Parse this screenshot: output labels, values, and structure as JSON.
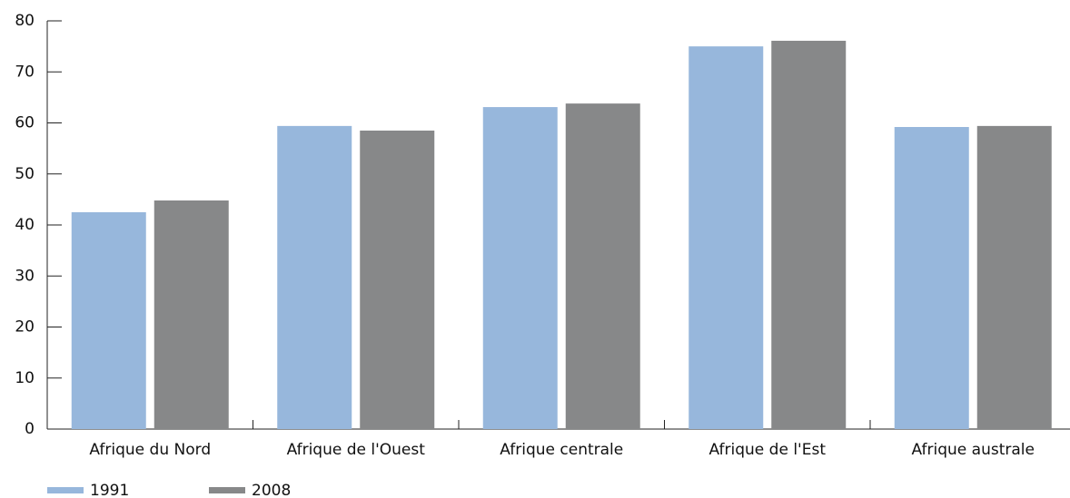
{
  "chart_data": {
    "type": "bar",
    "categories": [
      "Afrique du Nord",
      "Afrique de l'Ouest",
      "Afrique centrale",
      "Afrique de l'Est",
      "Afrique australe"
    ],
    "series": [
      {
        "name": "1991",
        "color": "#97b7dc",
        "values": [
          42.5,
          59.4,
          63.1,
          75.0,
          59.2
        ]
      },
      {
        "name": "2008",
        "color": "#878889",
        "values": [
          44.8,
          58.5,
          63.8,
          76.1,
          59.4
        ]
      }
    ],
    "ylim": [
      0,
      80
    ],
    "yticks": [
      0,
      10,
      20,
      30,
      40,
      50,
      60,
      70,
      80
    ],
    "grid": false,
    "legend": "bottom"
  }
}
